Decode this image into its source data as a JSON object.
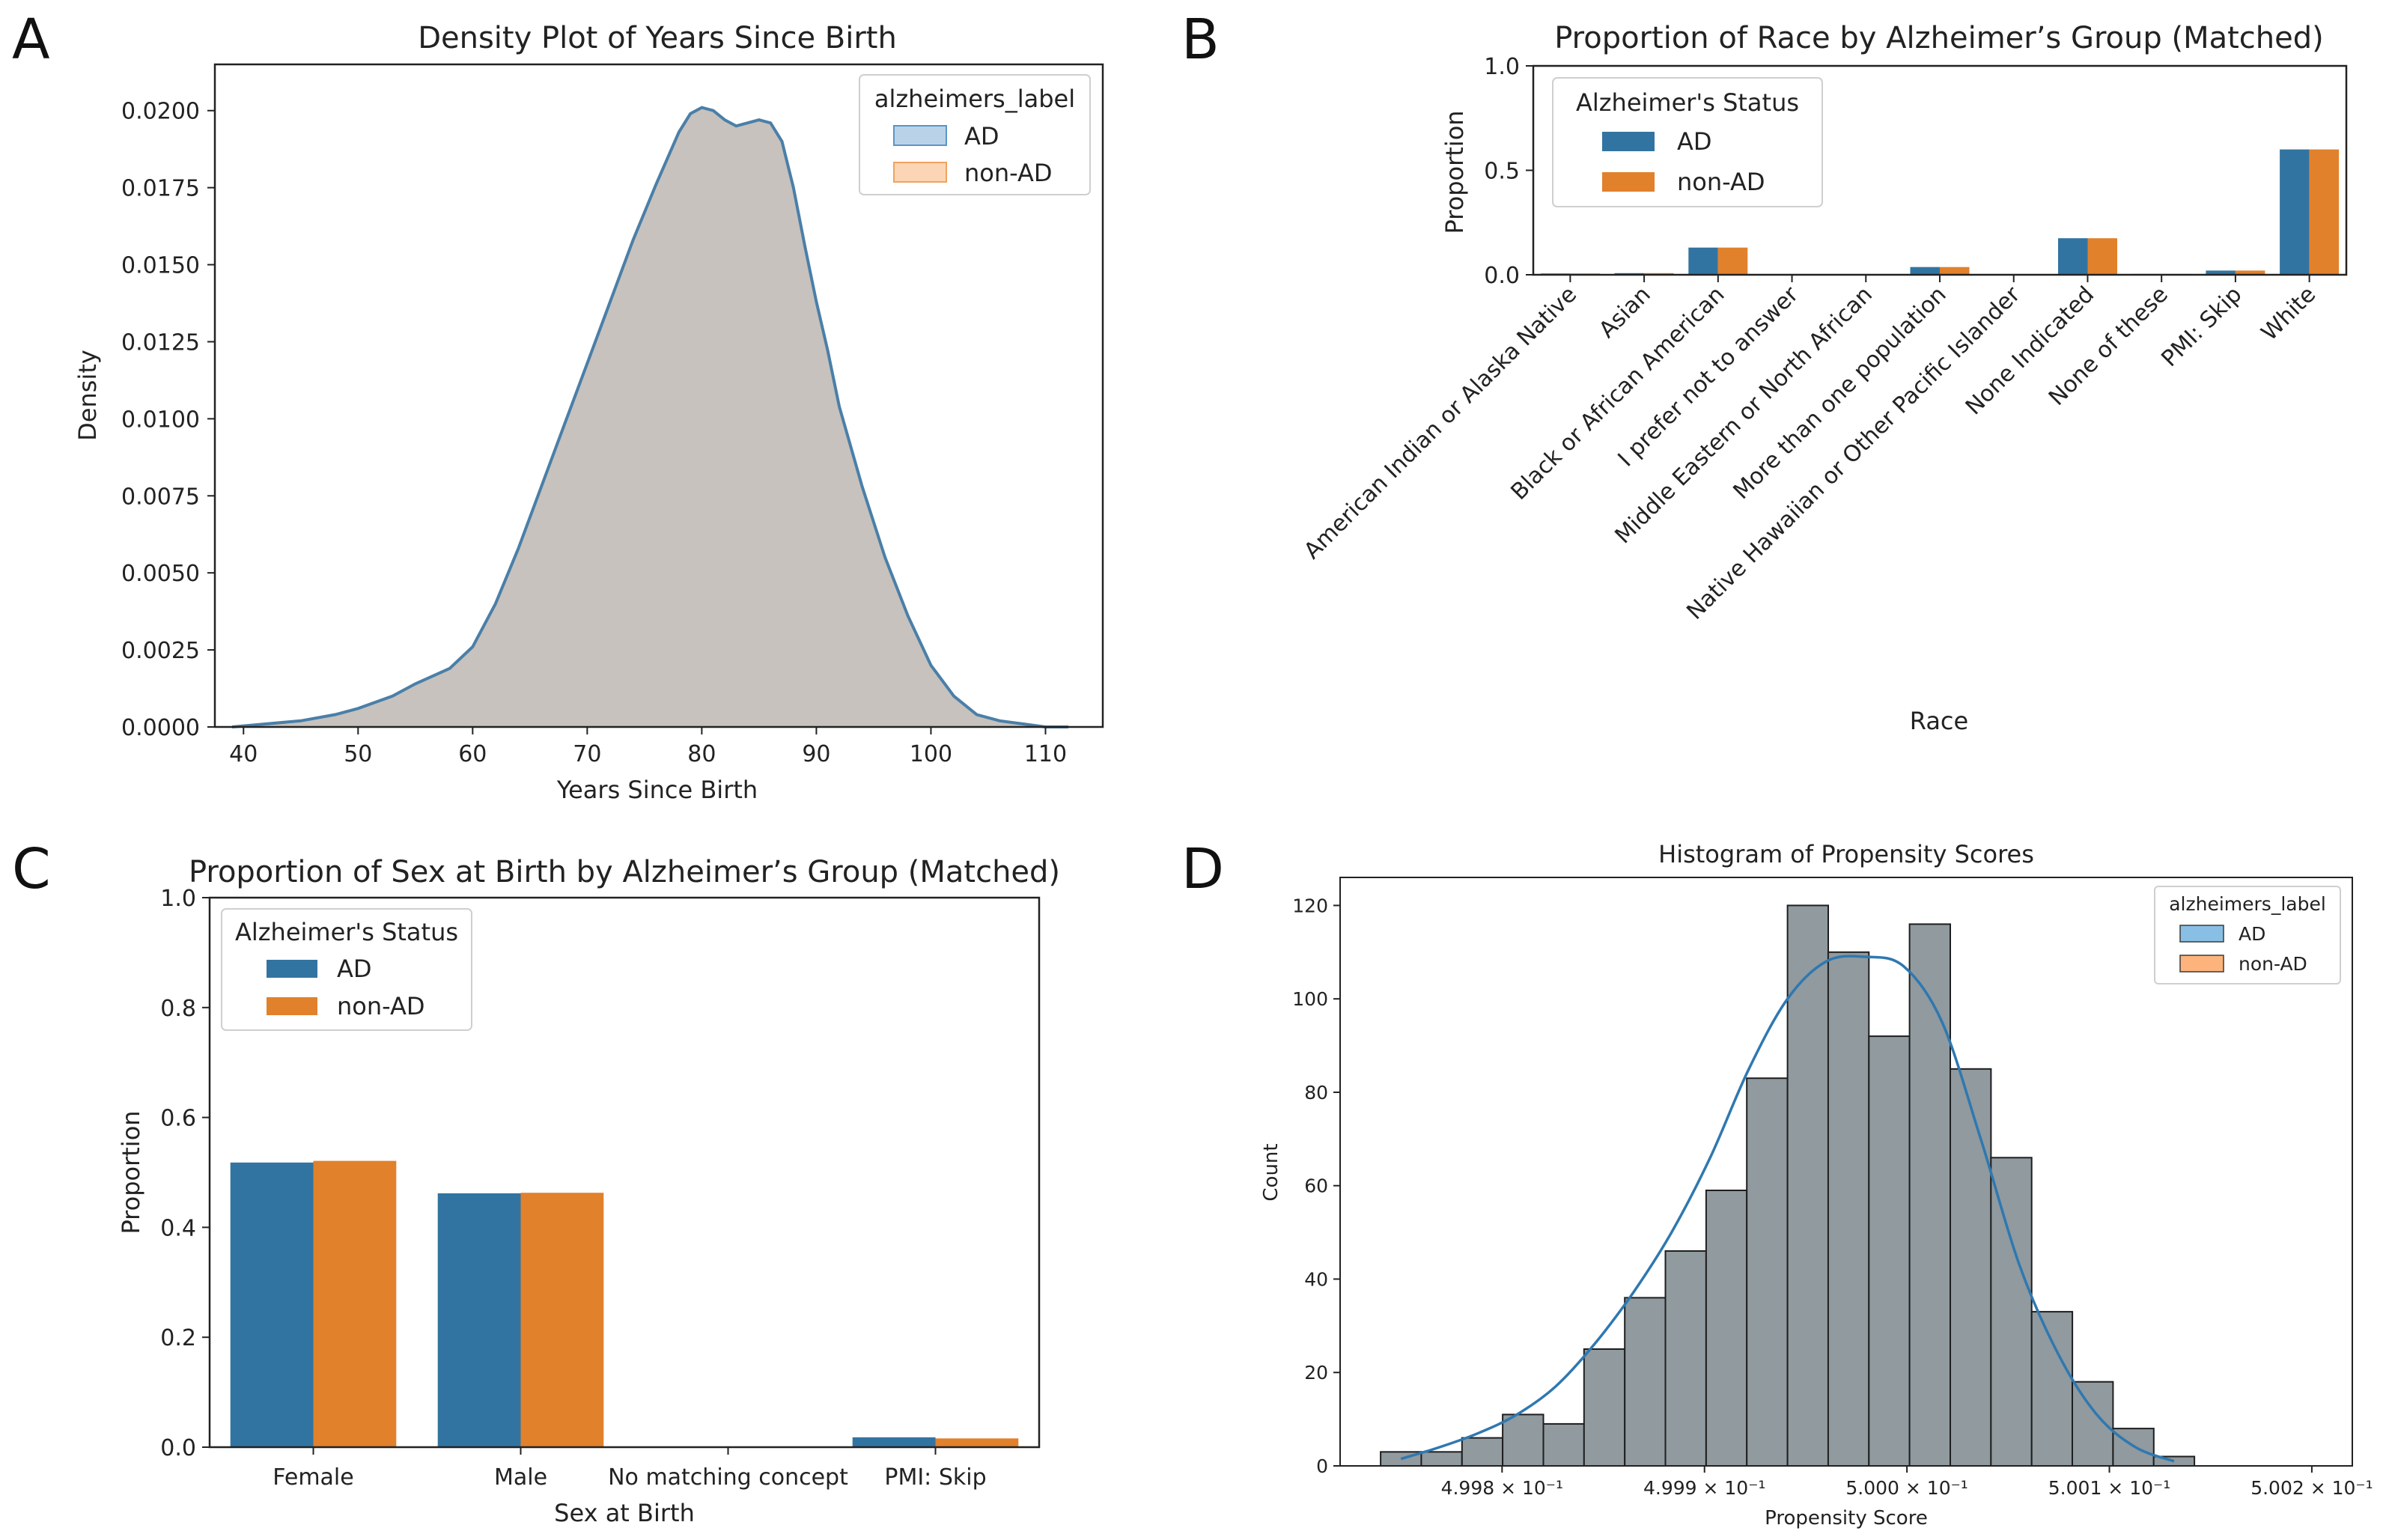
{
  "panels": {
    "A": {
      "letter": "A"
    },
    "B": {
      "letter": "B"
    },
    "C": {
      "letter": "C"
    },
    "D": {
      "letter": "D"
    }
  },
  "chart_data": [
    {
      "id": "A",
      "type": "area",
      "title": "Density Plot of Years Since Birth",
      "xlabel": "Years Since Birth",
      "ylabel": "Density",
      "xlim": [
        37.5,
        115
      ],
      "ylim": [
        0,
        0.0215
      ],
      "xticks": [
        40,
        50,
        60,
        70,
        80,
        90,
        100,
        110
      ],
      "yticks": [
        0,
        0.0025,
        0.005,
        0.0075,
        0.01,
        0.0125,
        0.015,
        0.0175,
        0.02
      ],
      "ytick_labels": [
        "0.0000",
        "0.0025",
        "0.0050",
        "0.0075",
        "0.0100",
        "0.0125",
        "0.0150",
        "0.0175",
        "0.0200"
      ],
      "legend": {
        "title": "alzheimers_label",
        "entries": [
          "AD",
          "non-AD"
        ],
        "colors": [
          "#b9d2e8",
          "#fbd5b5"
        ],
        "edges": [
          "#5b95c6",
          "#f0a35f"
        ]
      },
      "fill_color": "#c7c2bd",
      "line_color": "#4a7fa8",
      "x": [
        39,
        42,
        45,
        48,
        50,
        53,
        55,
        58,
        60,
        62,
        64,
        66,
        68,
        70,
        72,
        74,
        76,
        78,
        79,
        80,
        81,
        82,
        83,
        84,
        85,
        86,
        87,
        88,
        89,
        90,
        91,
        92,
        94,
        96,
        98,
        100,
        102,
        104,
        106,
        108,
        110,
        112
      ],
      "y": [
        0.0,
        0.0001,
        0.0002,
        0.0004,
        0.0006,
        0.001,
        0.0014,
        0.0019,
        0.0026,
        0.004,
        0.0058,
        0.0078,
        0.0098,
        0.0118,
        0.0138,
        0.0158,
        0.0176,
        0.0193,
        0.0199,
        0.0201,
        0.02,
        0.0197,
        0.0195,
        0.0196,
        0.0197,
        0.0196,
        0.019,
        0.0175,
        0.0156,
        0.0138,
        0.0122,
        0.0104,
        0.0078,
        0.0055,
        0.0036,
        0.002,
        0.001,
        0.0004,
        0.0002,
        0.0001,
        0.0,
        0.0
      ]
    },
    {
      "id": "B",
      "type": "bar",
      "title": "Proportion of Race by Alzheimer’s Group (Matched)",
      "xlabel": "Race",
      "ylabel": "Proportion",
      "ylim": [
        0,
        1
      ],
      "yticks": [
        0,
        0.5,
        1
      ],
      "ytick_labels": [
        "0.0",
        "0.5",
        "1.0"
      ],
      "legend": {
        "title": "Alzheimer's Status"
      },
      "categories": [
        "American Indian or Alaska Native",
        "Asian",
        "Black or African American",
        "I prefer not to answer",
        "Middle Eastern or North African",
        "More than one population",
        "Native Hawaiian or Other Pacific Islander",
        "None Indicated",
        "None of these",
        "PMI: Skip",
        "White"
      ],
      "series": [
        {
          "name": "AD",
          "color": "#3274a1",
          "values": [
            0.006,
            0.008,
            0.13,
            0.003,
            0.002,
            0.037,
            0.001,
            0.175,
            0.004,
            0.02,
            0.6
          ]
        },
        {
          "name": "non-AD",
          "color": "#e1812c",
          "values": [
            0.006,
            0.008,
            0.13,
            0.003,
            0.002,
            0.037,
            0.001,
            0.175,
            0.004,
            0.02,
            0.6
          ]
        }
      ]
    },
    {
      "id": "C",
      "type": "bar",
      "title": "Proportion of Sex at Birth by Alzheimer’s Group (Matched)",
      "xlabel": "Sex at Birth",
      "ylabel": "Proportion",
      "ylim": [
        0,
        1
      ],
      "yticks": [
        0,
        0.2,
        0.4,
        0.6,
        0.8,
        1
      ],
      "ytick_labels": [
        "0.0",
        "0.2",
        "0.4",
        "0.6",
        "0.8",
        "1.0"
      ],
      "legend": {
        "title": "Alzheimer's Status"
      },
      "categories": [
        "Female",
        "Male",
        "No matching concept",
        "PMI: Skip"
      ],
      "series": [
        {
          "name": "AD",
          "color": "#3274a1",
          "values": [
            0.518,
            0.462,
            0.0,
            0.018
          ]
        },
        {
          "name": "non-AD",
          "color": "#e1812c",
          "values": [
            0.521,
            0.463,
            0.0,
            0.016
          ]
        }
      ]
    },
    {
      "id": "D",
      "type": "bar",
      "title": "Histogram of Propensity Scores",
      "xlabel": "Propensity Score",
      "ylabel": "Count",
      "xlim": [
        0.49972,
        0.50022
      ],
      "ylim": [
        0,
        126
      ],
      "yticks": [
        0,
        20,
        40,
        60,
        80,
        100,
        120
      ],
      "xticks": [
        0.4998,
        0.4999,
        0.5,
        0.5001,
        0.5002
      ],
      "xtick_labels": [
        "4.998 × 10⁻¹",
        "4.999 × 10⁻¹",
        "5.000 × 10⁻¹",
        "5.001 × 10⁻¹",
        "5.002 × 10⁻¹"
      ],
      "legend": {
        "title": "alzheimers_label",
        "entries": [
          "AD",
          "non-AD"
        ],
        "colors": [
          "#89bfe4",
          "#fcb47c"
        ],
        "edges": [
          "#3a3a3a",
          "#3a3a3a"
        ]
      },
      "bar_color": "#909a9f",
      "kde_color": "#2f78b0",
      "bins_start": 0.49974,
      "bin_width": 2.01e-05,
      "values": [
        3,
        3,
        6,
        11,
        9,
        25,
        36,
        46,
        59,
        83,
        120,
        110,
        92,
        116,
        85,
        66,
        33,
        18,
        8,
        2
      ],
      "kde": [
        1.5,
        4,
        7,
        11,
        17,
        26,
        37,
        50,
        66,
        85,
        100,
        108,
        109,
        107,
        95,
        70,
        43,
        24,
        11,
        4,
        1
      ]
    }
  ]
}
